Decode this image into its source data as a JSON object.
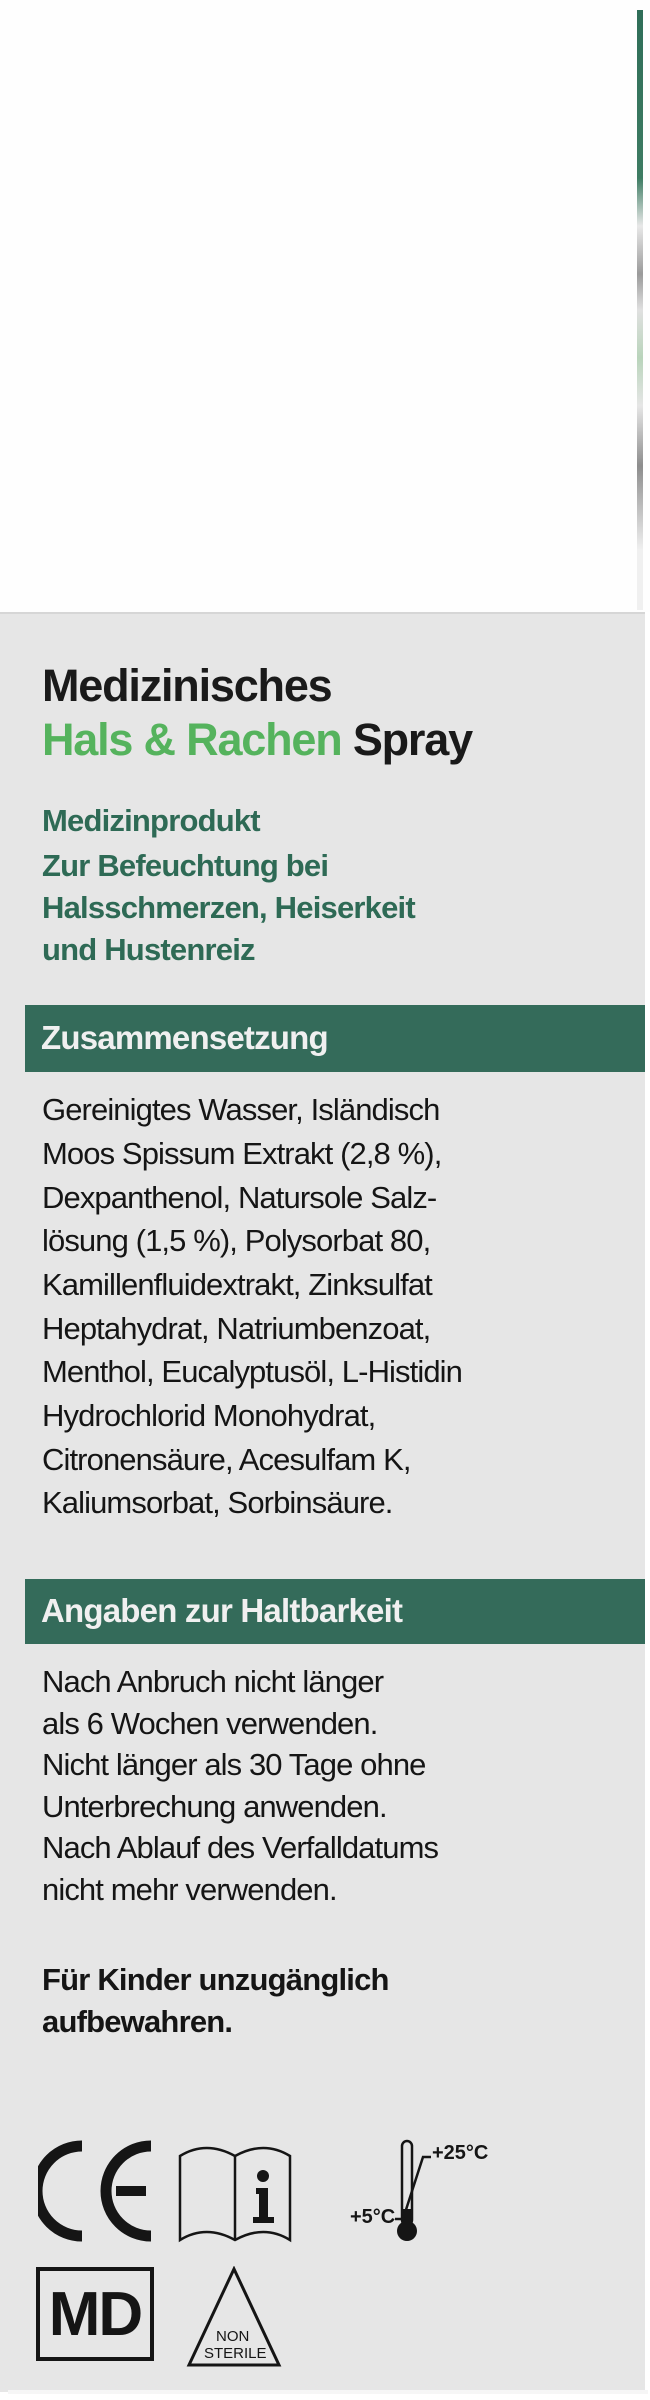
{
  "header": {
    "title_line1": "Medizinisches",
    "title_highlight": "Hals & Rachen",
    "title_suffix": "Spray",
    "product_type": "Medizinprodukt",
    "purpose_lines": [
      "Zur Befeuchtung bei",
      "Halsschmerzen, Heiserkeit",
      "und Hustenreiz"
    ]
  },
  "composition": {
    "heading": "Zusammensetzung",
    "lines": [
      "Gereinigtes Wasser, Isländisch",
      "Moos Spissum Extrakt (2,8 %),",
      "Dexpanthenol, Natursole Salz-",
      "lösung (1,5 %), Polysorbat 80,",
      "Kamillenfluidextrakt, Zinksulfat",
      "Heptahydrat, Natriumbenzoat,",
      "Menthol, Eucalyptusöl, L-Histidin",
      "Hydrochlorid Monohydrat,",
      "Citronensäure, Acesulfam K,",
      "Kaliumsorbat, Sorbinsäure."
    ]
  },
  "shelf_life": {
    "heading": "Angaben zur Haltbarkeit",
    "lines": [
      "Nach Anbruch nicht länger",
      "als 6 Wochen verwenden.",
      "Nicht länger als 30 Tage ohne",
      "Unterbrechung anwenden.",
      "Nach Ablauf des Verfalldatums",
      "nicht mehr verwenden."
    ],
    "warning_lines": [
      "Für Kinder unzugänglich",
      "aufbewahren."
    ]
  },
  "symbols": {
    "ce": "CE",
    "ifu": "i",
    "temp_low": "+5°C",
    "temp_high": "+25°C",
    "md": "MD",
    "non_sterile_line1": "NON",
    "non_sterile_line2": "STERILE"
  },
  "colors": {
    "section_bar": "#346b5a",
    "highlight_green": "#55b35d",
    "subtitle_green": "#2e6a55",
    "panel_bg": "#e6e6e6"
  }
}
